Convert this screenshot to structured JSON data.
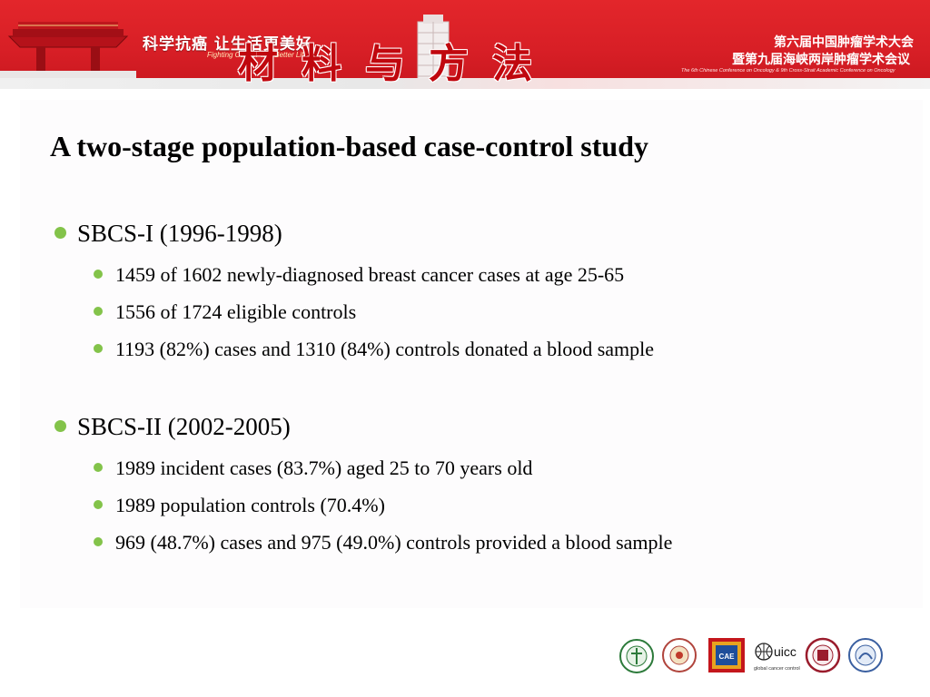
{
  "header": {
    "slogan": "科学抗癌 让生活更美好",
    "slogan_en": "Fighting Cancer and Better Life",
    "title": "材料与方法",
    "conference_line1": "第六届中国肿瘤学术大会",
    "conference_line2": "暨第九届海峡两岸肿瘤学术会议",
    "conference_en": "The 6th Chinese Conference on Oncology & 9th Cross-Strait Academic Conference on Oncology"
  },
  "slide": {
    "heading": "A two-stage population-based case-control study",
    "sections": [
      {
        "title": "SBCS-I (1996-1998)",
        "items": [
          "1459 of 1602 newly-diagnosed breast cancer cases at age 25-65",
          "1556 of 1724 eligible controls",
          "1193 (82%) cases and 1310 (84%) controls donated a blood sample"
        ]
      },
      {
        "title": "SBCS-II (2002-2005)",
        "items": [
          "1989 incident cases (83.7%) aged 25 to 70 years old",
          "1989 population controls  (70.4%)",
          "969 (48.7%) cases and 975 (49.0%) controls provided a blood sample"
        ]
      }
    ]
  },
  "logos": {
    "uicc_name": "uicc",
    "uicc_tagline": "global cancer control",
    "cae": "CAE"
  },
  "colors": {
    "banner_red": "#d81f26",
    "title_red": "#c0070e",
    "bullet_green": "#83c34a"
  }
}
